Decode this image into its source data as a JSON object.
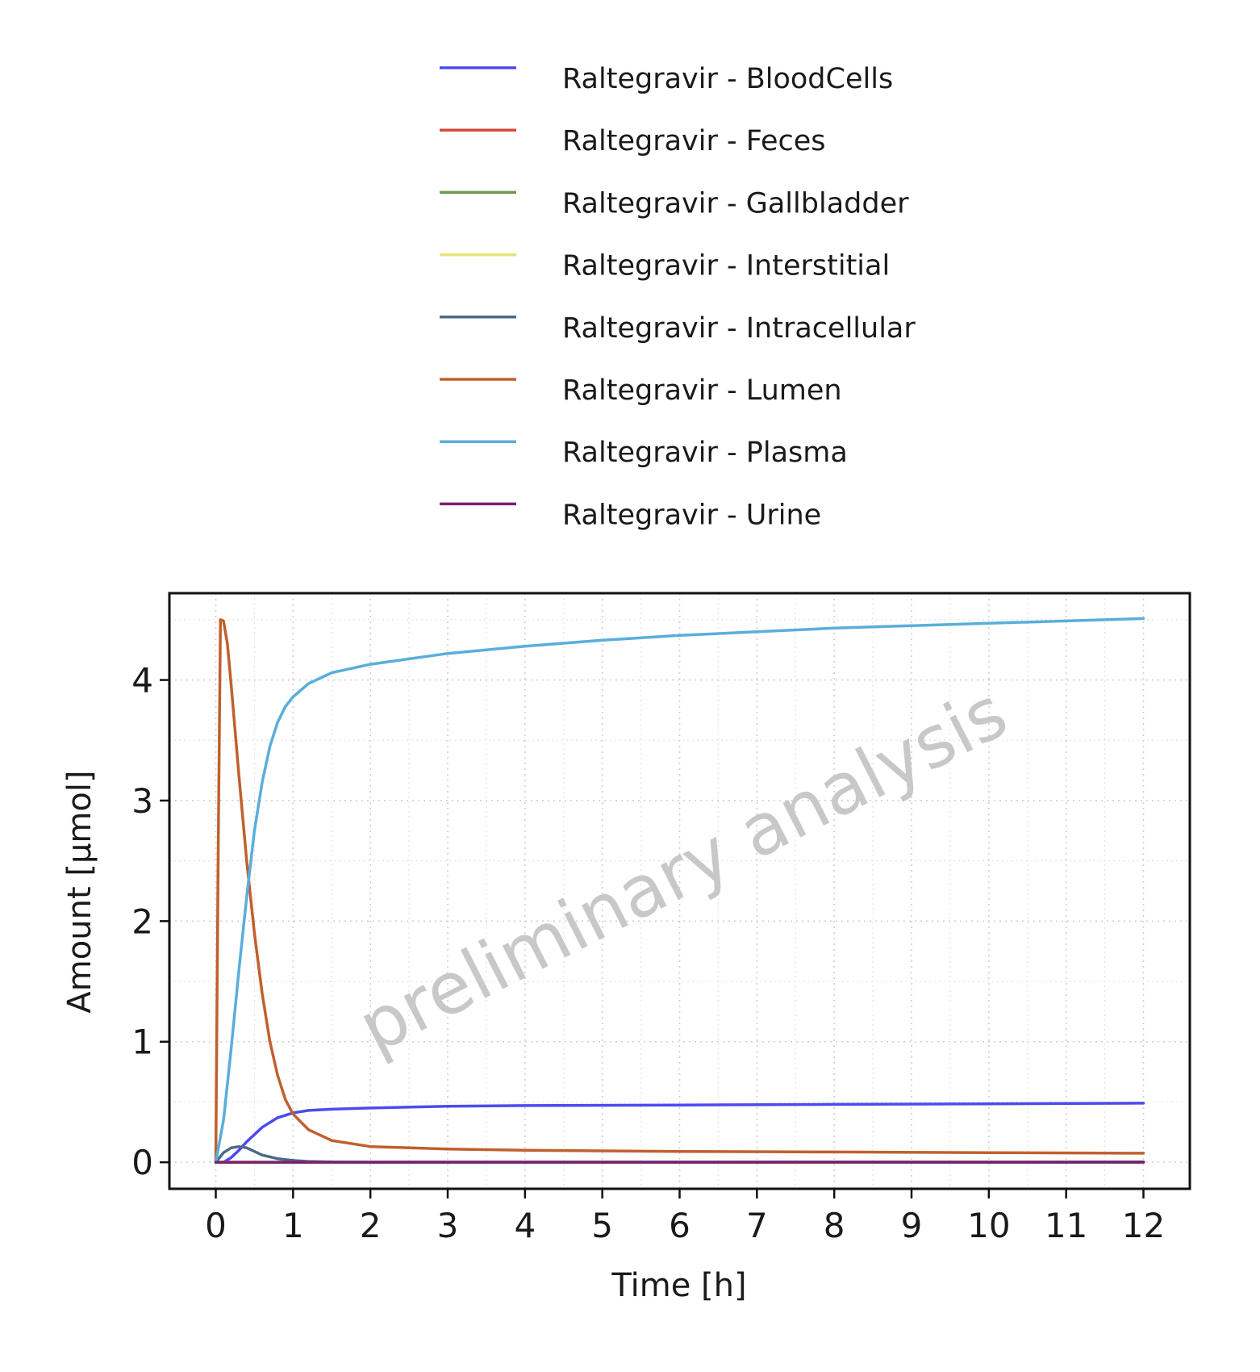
{
  "chart_data": {
    "type": "line",
    "xlabel": "Time [h]",
    "ylabel": "Amount [µmol]",
    "xlim": [
      -0.6,
      12.6
    ],
    "ylim": [
      -0.22,
      4.72
    ],
    "xticks": [
      0,
      1,
      2,
      3,
      4,
      5,
      6,
      7,
      8,
      9,
      10,
      11,
      12
    ],
    "yticks": [
      0,
      1,
      2,
      3,
      4
    ],
    "grid": true,
    "legend_position": "top",
    "watermark": "preliminary analysis",
    "series": [
      {
        "name": "Raltegravir - BloodCells",
        "color": "#4b4bf0",
        "x": [
          0,
          0.1,
          0.2,
          0.3,
          0.4,
          0.5,
          0.6,
          0.7,
          0.8,
          0.9,
          1.0,
          1.2,
          1.5,
          2,
          3,
          4,
          6,
          8,
          10,
          12
        ],
        "y": [
          0,
          0.0,
          0.04,
          0.1,
          0.17,
          0.23,
          0.29,
          0.33,
          0.37,
          0.39,
          0.41,
          0.43,
          0.44,
          0.45,
          0.465,
          0.47,
          0.475,
          0.48,
          0.485,
          0.49
        ]
      },
      {
        "name": "Raltegravir - Feces",
        "color": "#d9483b",
        "x": [
          0,
          12
        ],
        "y": [
          0,
          0
        ]
      },
      {
        "name": "Raltegravir - Gallbladder",
        "color": "#6b9a4f",
        "x": [
          0,
          12
        ],
        "y": [
          0,
          0
        ]
      },
      {
        "name": "Raltegravir - Interstitial",
        "color": "#e8e27a",
        "x": [
          0,
          12
        ],
        "y": [
          0,
          0
        ]
      },
      {
        "name": "Raltegravir - Intracellular",
        "color": "#4a6a88",
        "x": [
          0,
          0.1,
          0.2,
          0.3,
          0.4,
          0.5,
          0.6,
          0.8,
          1.0,
          1.2,
          1.5,
          2,
          12
        ],
        "y": [
          0,
          0.08,
          0.12,
          0.13,
          0.12,
          0.09,
          0.06,
          0.03,
          0.015,
          0.007,
          0.003,
          0.001,
          0
        ]
      },
      {
        "name": "Raltegravir - Lumen",
        "color": "#c0602e",
        "x": [
          0,
          0.03,
          0.06,
          0.1,
          0.15,
          0.2,
          0.3,
          0.4,
          0.5,
          0.6,
          0.7,
          0.8,
          0.9,
          1.0,
          1.2,
          1.5,
          2,
          3,
          4,
          6,
          8,
          10,
          12
        ],
        "y": [
          0,
          2.5,
          4.5,
          4.49,
          4.3,
          3.95,
          3.2,
          2.5,
          1.9,
          1.4,
          1.0,
          0.72,
          0.52,
          0.4,
          0.27,
          0.18,
          0.13,
          0.11,
          0.1,
          0.09,
          0.085,
          0.08,
          0.075
        ]
      },
      {
        "name": "Raltegravir - Plasma",
        "color": "#59aedb",
        "x": [
          0,
          0.1,
          0.2,
          0.3,
          0.4,
          0.5,
          0.6,
          0.7,
          0.8,
          0.9,
          1.0,
          1.2,
          1.5,
          2,
          3,
          4,
          5,
          6,
          7,
          8,
          9,
          10,
          11,
          12
        ],
        "y": [
          0,
          0.35,
          0.95,
          1.6,
          2.2,
          2.75,
          3.15,
          3.45,
          3.65,
          3.78,
          3.86,
          3.97,
          4.06,
          4.13,
          4.22,
          4.28,
          4.33,
          4.37,
          4.4,
          4.43,
          4.45,
          4.47,
          4.49,
          4.51
        ]
      },
      {
        "name": "Raltegravir - Urine",
        "color": "#7b2170",
        "x": [
          0,
          12
        ],
        "y": [
          0,
          0.002
        ]
      }
    ]
  }
}
